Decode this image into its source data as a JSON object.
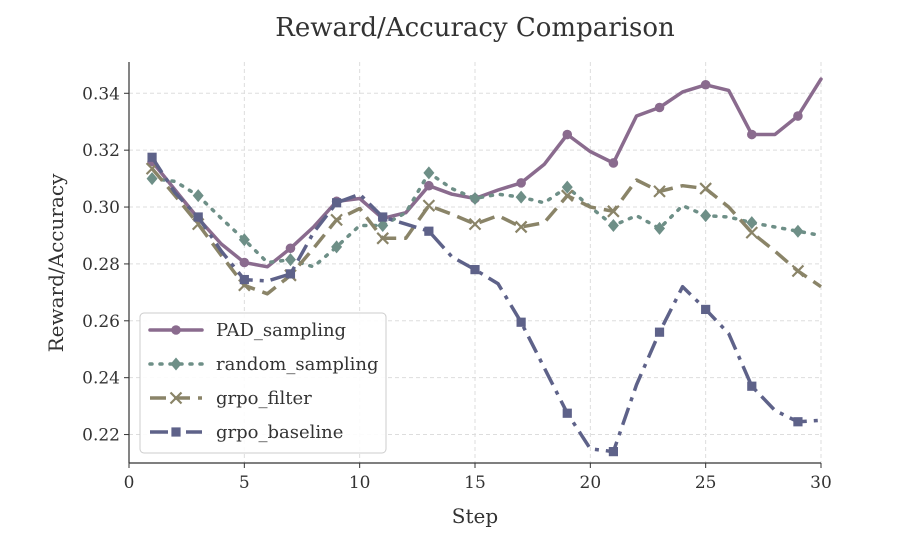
{
  "chart_data": {
    "type": "line",
    "title": "Reward/Accuracy Comparison",
    "xlabel": "Step",
    "ylabel": "Reward/Accuracy",
    "xlim": [
      0,
      30
    ],
    "ylim": [
      0.21,
      0.351
    ],
    "xticks": [
      0,
      5,
      10,
      15,
      20,
      25,
      30
    ],
    "yticks": [
      0.22,
      0.24,
      0.26,
      0.28,
      0.3,
      0.32,
      0.34
    ],
    "grid": true,
    "legend_position": "lower-left",
    "x": [
      1,
      2,
      3,
      4,
      5,
      6,
      7,
      8,
      9,
      10,
      11,
      12,
      13,
      14,
      15,
      16,
      17,
      18,
      19,
      20,
      21,
      22,
      23,
      24,
      25,
      26,
      27,
      28,
      29,
      30
    ],
    "series": [
      {
        "name": "PAD_sampling",
        "color": "#8a6b8e",
        "style": "solid",
        "marker": "circle",
        "marker_every": 2,
        "values": [
          0.316,
          0.306,
          0.296,
          0.287,
          0.2805,
          0.279,
          0.2855,
          0.293,
          0.302,
          0.303,
          0.296,
          0.298,
          0.3075,
          0.3045,
          0.303,
          0.306,
          0.3085,
          0.315,
          0.3255,
          0.3195,
          0.3155,
          0.332,
          0.335,
          0.3405,
          0.343,
          0.341,
          0.3255,
          0.3255,
          0.332,
          0.345
        ]
      },
      {
        "name": "random_sampling",
        "color": "#6e8f87",
        "style": "dotted",
        "marker": "diamond",
        "marker_every": 2,
        "values": [
          0.31,
          0.309,
          0.304,
          0.296,
          0.2885,
          0.2805,
          0.2815,
          0.279,
          0.286,
          0.2935,
          0.2935,
          0.298,
          0.312,
          0.3065,
          0.303,
          0.3045,
          0.3035,
          0.3015,
          0.307,
          0.3,
          0.2935,
          0.297,
          0.2925,
          0.3005,
          0.297,
          0.2965,
          0.2945,
          0.293,
          0.2915,
          0.29
        ]
      },
      {
        "name": "grpo_filter",
        "color": "#8a8468",
        "style": "dashed",
        "marker": "x",
        "marker_every": 2,
        "values": [
          0.3135,
          0.304,
          0.294,
          0.283,
          0.2725,
          0.2695,
          0.276,
          0.2855,
          0.2955,
          0.2995,
          0.289,
          0.289,
          0.3005,
          0.2975,
          0.294,
          0.297,
          0.293,
          0.2945,
          0.304,
          0.3,
          0.2985,
          0.3095,
          0.3055,
          0.3075,
          0.3065,
          0.3,
          0.291,
          0.2845,
          0.2775,
          0.272
        ]
      },
      {
        "name": "grpo_baseline",
        "color": "#5e6289",
        "style": "dashdot",
        "marker": "square",
        "marker_every": 2,
        "values": [
          0.3175,
          0.305,
          0.2965,
          0.2845,
          0.2745,
          0.274,
          0.2765,
          0.291,
          0.3015,
          0.3045,
          0.2965,
          0.294,
          0.2915,
          0.2825,
          0.278,
          0.273,
          0.2595,
          0.2435,
          0.2275,
          0.215,
          0.214,
          0.2375,
          0.256,
          0.272,
          0.264,
          0.2555,
          0.237,
          0.2285,
          0.2245,
          0.225
        ]
      }
    ]
  }
}
